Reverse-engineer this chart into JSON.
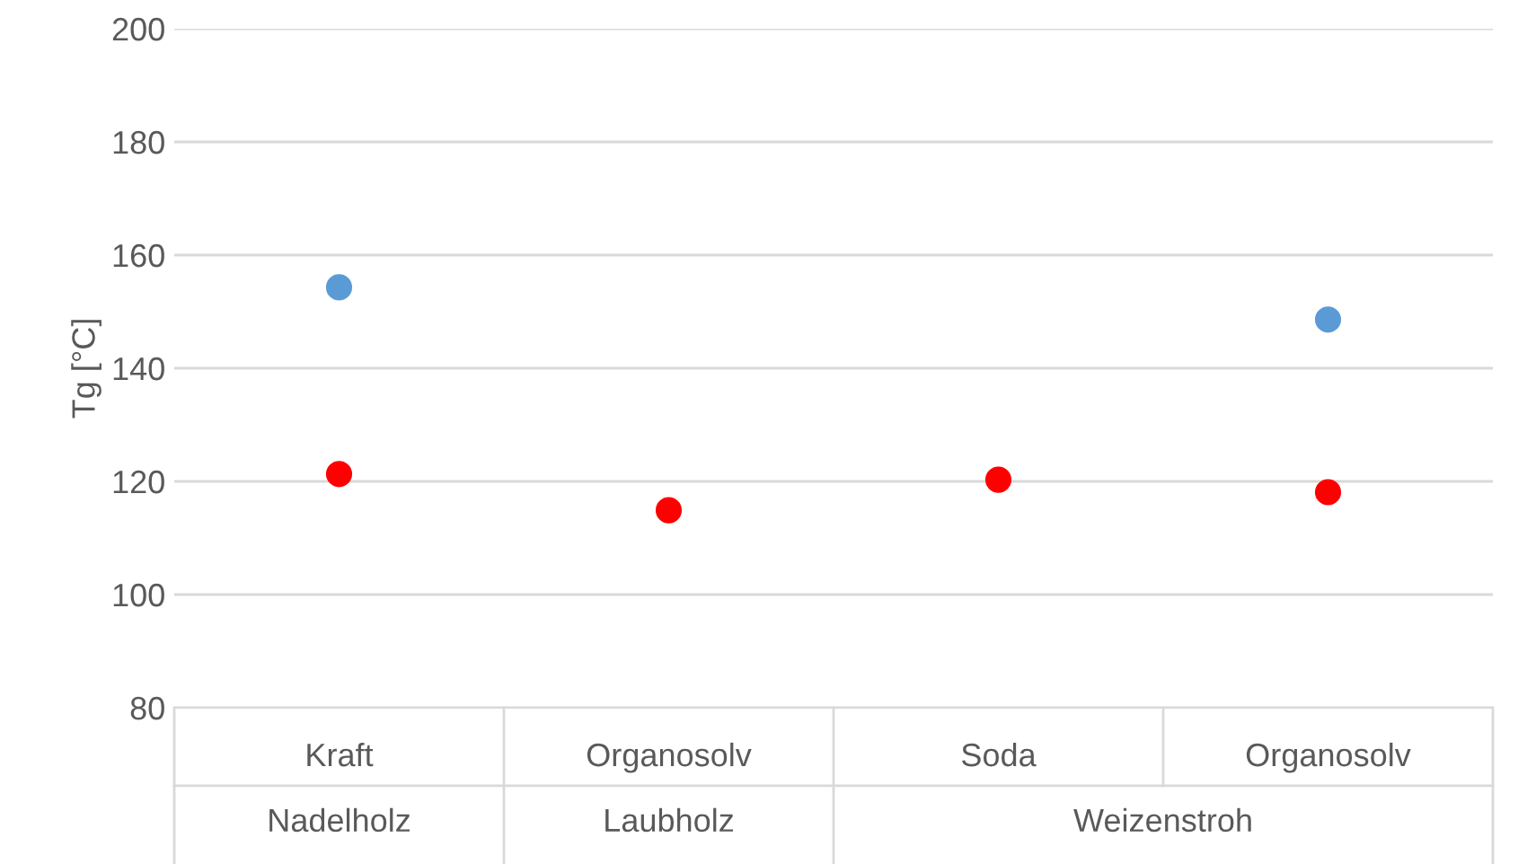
{
  "chart_data": {
    "type": "scatter",
    "ylabel": "Tg [°C]",
    "categories": [
      "Kraft",
      "Organosolv",
      "Soda",
      "Organosolv"
    ],
    "series": [
      {
        "color": "#5b9bd5",
        "values": [
          154.3,
          null,
          null,
          148.6
        ]
      },
      {
        "color": "#ff0000",
        "values": [
          121.3,
          114.9,
          120.3,
          118.1
        ]
      }
    ],
    "annotations": [
      "Nadelholz",
      "Laubholz",
      "Weizenstroh"
    ],
    "ylim": [
      80,
      200
    ],
    "yticks": [
      80,
      100,
      120,
      140,
      160,
      180,
      200
    ],
    "grid": "y",
    "marker": "circle",
    "legend": false
  }
}
